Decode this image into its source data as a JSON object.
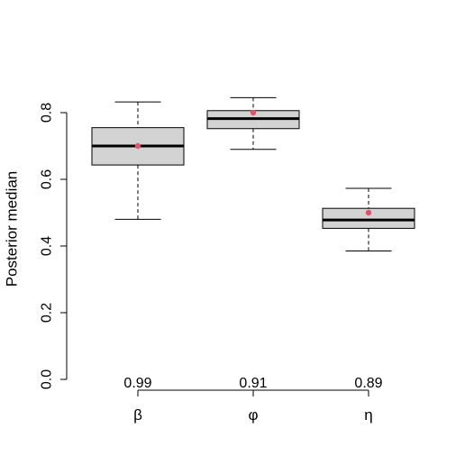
{
  "chart_data": {
    "type": "box",
    "title": "",
    "xlabel": "",
    "ylabel": "Posterior median",
    "ylim": [
      0.0,
      0.8
    ],
    "yticks": [
      0.0,
      0.2,
      0.4,
      0.6,
      0.8
    ],
    "ytick_labels": [
      "0.0",
      "0.2",
      "0.4",
      "0.6",
      "0.8"
    ],
    "grid": false,
    "legend": "none",
    "categories": [
      "β",
      "φ",
      "η"
    ],
    "annotations": [
      "0.99",
      "0.91",
      "0.89"
    ],
    "boxes": [
      {
        "label": "β",
        "whisker_low": 0.48,
        "q1": 0.643,
        "median": 0.7,
        "q3": 0.755,
        "whisker_high": 0.832,
        "mean": 0.7,
        "annotation": "0.99"
      },
      {
        "label": "φ",
        "whisker_low": 0.69,
        "q1": 0.752,
        "median": 0.782,
        "q3": 0.806,
        "whisker_high": 0.845,
        "mean": 0.8,
        "annotation": "0.91"
      },
      {
        "label": "η",
        "whisker_low": 0.385,
        "q1": 0.453,
        "median": 0.478,
        "q3": 0.513,
        "whisker_high": 0.573,
        "mean": 0.5,
        "annotation": "0.89"
      }
    ],
    "colors": {
      "box_fill": "#d3d3d3",
      "mean_point": "#df536b",
      "stroke": "#000000"
    }
  }
}
